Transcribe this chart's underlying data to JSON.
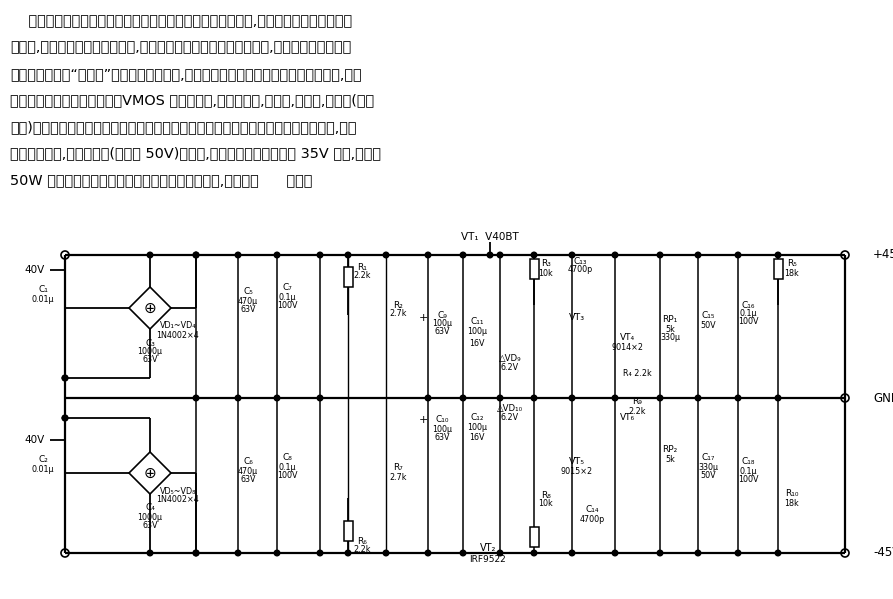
{
  "bg": "#ffffff",
  "fw": 8.93,
  "fh": 5.99,
  "dpi": 100,
  "para": [
    "    顶级功放为避免大功率输出时电源电压跌落引起的调制失真,提高电源利用效率和电路",
    "稳定性,通常采用高低压供电方式,即电压激励级用较高电压稳压供电,电流输出级用较低电",
    "压不稳定供电。“洼田式”稳压电源源于日本,是发烧界极负盛名的高性能稳压伺服电源,其特",
    "点是采用差分取样伺服电路。VMOS 管作调整管,具有高稳定,低噪声,高速率,低内阻(达微",
    "欧级)。用它作为功放电压激励级供电实乃最佳选择。该稳压电路中使用了四只恒流管,该管",
    "不仅价高难觅,而且受耐压(一般仅 50V)的限制,输出电压一般只能做到 35V 左右,使之与",
    "50W 以上功放无缘。这就限制了其普及和应用范围,电路如图      所示。"
  ]
}
